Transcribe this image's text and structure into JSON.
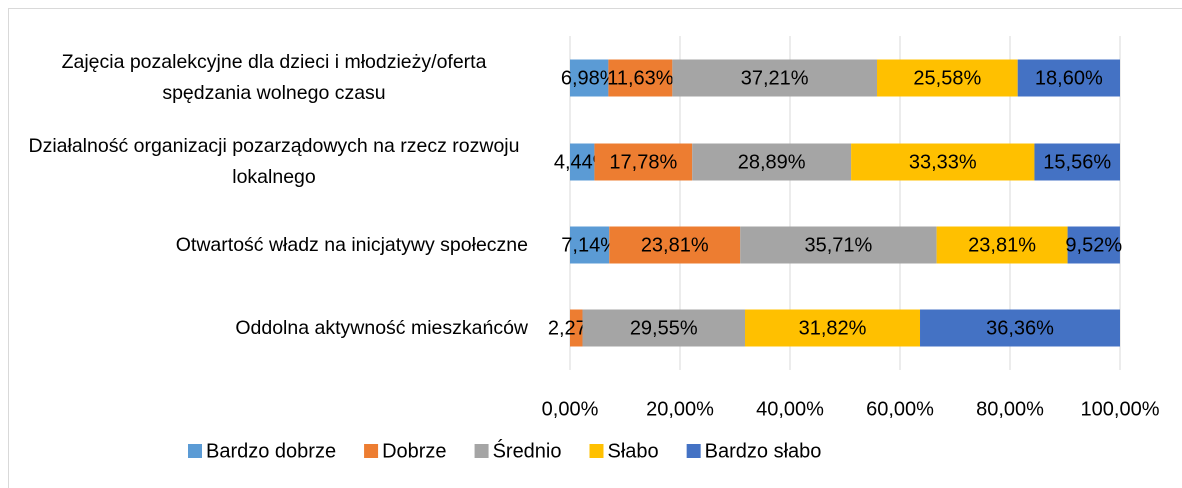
{
  "chart_data": {
    "type": "stacked-bar-horizontal",
    "categories": [
      "Zajęcia pozalekcyjne dla dzieci i młodzieży/oferta spędzania wolnego czasu",
      "Działalność organizacji pozarządowych na rzecz rozwoju lokalnego",
      "Otwartość władz na inicjatywy społeczne",
      "Oddolna aktywność mieszkańców"
    ],
    "series": [
      {
        "name": "Bardzo dobrze",
        "color": "#5b9bd5",
        "values": [
          6.98,
          4.44,
          7.14,
          null
        ],
        "value_labels": [
          "6,98%",
          "4,44%",
          "7,14%",
          null
        ]
      },
      {
        "name": "Dobrze",
        "color": "#ed7d31",
        "values": [
          11.63,
          17.78,
          23.81,
          2.27
        ],
        "value_labels": [
          "11,63%",
          "17,78%",
          "23,81%",
          "2,27%"
        ]
      },
      {
        "name": "Średnio",
        "color": "#a5a5a5",
        "values": [
          37.21,
          28.89,
          35.71,
          29.55
        ],
        "value_labels": [
          "37,21%",
          "28,89%",
          "35,71%",
          "29,55%"
        ]
      },
      {
        "name": "Słabo",
        "color": "#ffc000",
        "values": [
          25.58,
          33.33,
          23.81,
          31.82
        ],
        "value_labels": [
          "25,58%",
          "33,33%",
          "23,81%",
          "31,82%"
        ]
      },
      {
        "name": "Bardzo słabo",
        "color": "#4472c4",
        "values": [
          18.6,
          15.56,
          9.52,
          36.36
        ],
        "value_labels": [
          "18,60%",
          "15,56%",
          "9,52%",
          "36,36%"
        ]
      }
    ],
    "xlim": [
      0,
      100
    ],
    "xticks": [
      {
        "value": 0,
        "label": "0,00%"
      },
      {
        "value": 20,
        "label": "20,00%"
      },
      {
        "value": 40,
        "label": "40,00%"
      },
      {
        "value": 60,
        "label": "60,00%"
      },
      {
        "value": 80,
        "label": "80,00%"
      },
      {
        "value": 100,
        "label": "100,00%"
      }
    ],
    "grid": true,
    "legend": "bottom"
  }
}
